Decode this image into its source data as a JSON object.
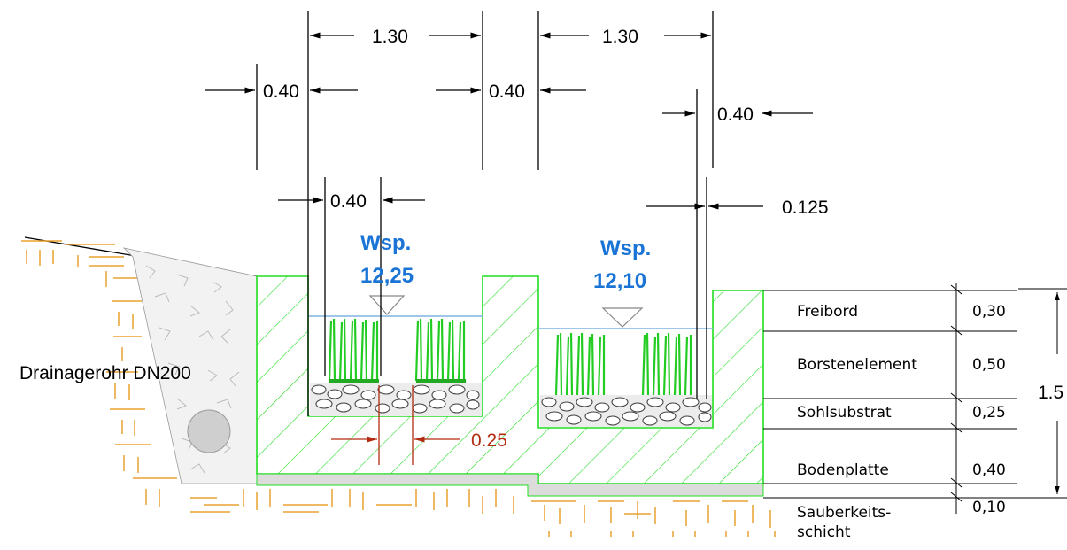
{
  "dimensions": {
    "top_left_width": "1.30",
    "top_right_width": "1.30",
    "wall_left": "0.40",
    "wall_middle": "0.40",
    "wall_right": "0.40",
    "bristle_width": "0.40",
    "offset": "0.125",
    "gap": "0.25",
    "total_height": "1.5"
  },
  "water_levels": [
    {
      "label": "Wsp.",
      "value": "12,25"
    },
    {
      "label": "Wsp.",
      "value": "12,10"
    }
  ],
  "drain_label": "Drainagerohr DN200",
  "layers": [
    {
      "label": "Freibord",
      "value": "0,30"
    },
    {
      "label": "Borstenelement",
      "value": "0,50"
    },
    {
      "label": "Sohlsubstrat",
      "value": "0,25"
    },
    {
      "label": "Bodenplatte",
      "value": "0,40"
    },
    {
      "label": "Sauberkeits-",
      "label2": "schicht",
      "value": "0,10"
    }
  ],
  "colors": {
    "concrete_fill": "#ffffff",
    "concrete_stroke": "#22dd22",
    "bristle": "#22cc22",
    "water": "#7fb4e0",
    "soil_hatch": "#e8a030",
    "gravel_fill": "#e6e6e6",
    "dim_red": "#b32b10",
    "wsp_blue": "#1a74d6"
  }
}
